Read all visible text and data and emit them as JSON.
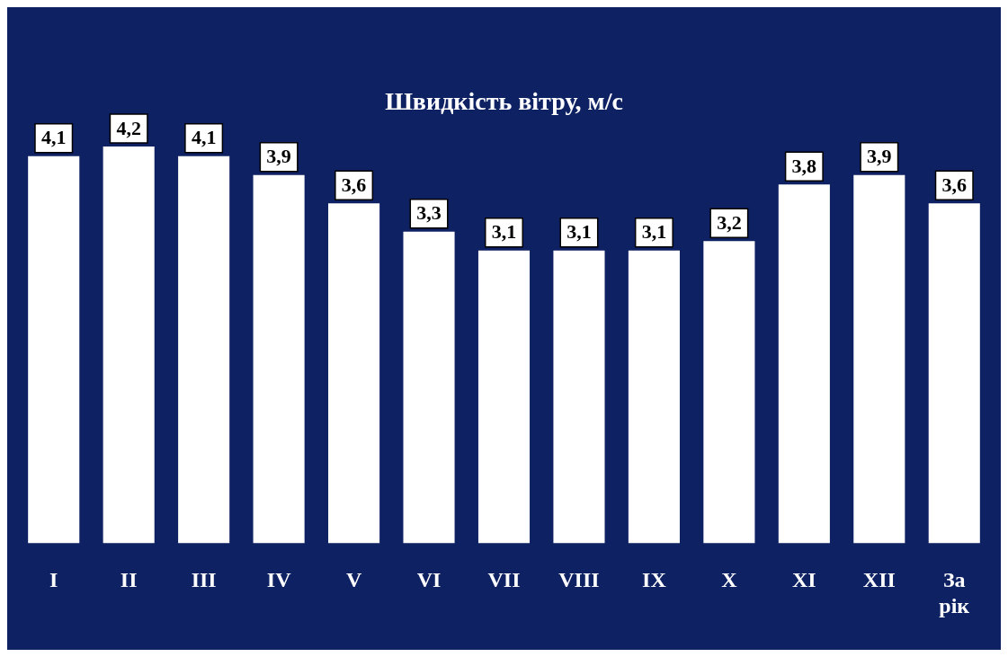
{
  "chart_data": {
    "type": "bar",
    "title": "Швидкість вітру, м/с",
    "categories": [
      "I",
      "II",
      "III",
      "IV",
      "V",
      "VI",
      "VII",
      "VIII",
      "IX",
      "X",
      "XI",
      "XII",
      "За рік"
    ],
    "values": [
      4.1,
      4.2,
      4.1,
      3.9,
      3.6,
      3.3,
      3.1,
      3.1,
      3.1,
      3.2,
      3.8,
      3.9,
      3.6
    ],
    "value_labels": [
      "4,1",
      "4,2",
      "4,1",
      "3,9",
      "3,6",
      "3,3",
      "3,1",
      "3,1",
      "3,1",
      "3,2",
      "3,8",
      "3,9",
      "3,6"
    ],
    "color": "#ffffff",
    "grid": false,
    "legend": false,
    "tick_labels": "x"
  }
}
